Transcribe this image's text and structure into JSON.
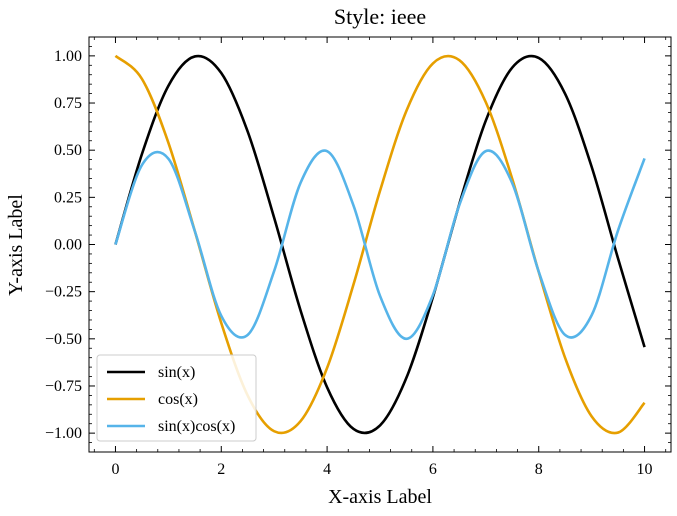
{
  "chart_data": {
    "type": "line",
    "title": "Style: ieee",
    "xlabel": "X-axis Label",
    "ylabel": "Y-axis Label",
    "xlim": [
      -0.5,
      10.5
    ],
    "ylim": [
      -1.1,
      1.1
    ],
    "x_ticks": [
      0,
      2,
      4,
      6,
      8,
      10
    ],
    "y_ticks": [
      1.0,
      0.75,
      0.5,
      0.25,
      0.0,
      -0.25,
      -0.5,
      -0.75,
      -1.0
    ],
    "x_tick_labels": [
      "0",
      "2",
      "4",
      "6",
      "8",
      "10"
    ],
    "y_tick_labels": [
      "1.00",
      "0.75",
      "0.50",
      "0.25",
      "0.00",
      "−0.25",
      "−0.50",
      "−0.75",
      "−1.00"
    ],
    "x": [
      0,
      0.5,
      1,
      1.5,
      2,
      2.5,
      3,
      3.5,
      4,
      4.5,
      5,
      5.5,
      6,
      6.5,
      7,
      7.5,
      8,
      8.5,
      9,
      9.5,
      10
    ],
    "series": [
      {
        "name": "sin(x)",
        "color": "#000000",
        "values": [
          0,
          0.479,
          0.841,
          0.997,
          0.909,
          0.598,
          0.141,
          -0.351,
          -0.757,
          -0.978,
          -0.959,
          -0.706,
          -0.279,
          0.215,
          0.657,
          0.938,
          0.989,
          0.798,
          0.412,
          -0.075,
          -0.544
        ]
      },
      {
        "name": "cos(x)",
        "color": "#e69f00",
        "values": [
          1,
          0.878,
          0.54,
          0.071,
          -0.416,
          -0.801,
          -0.99,
          -0.936,
          -0.654,
          -0.211,
          0.284,
          0.709,
          0.96,
          0.977,
          0.754,
          0.347,
          -0.146,
          -0.602,
          -0.911,
          -0.997,
          -0.839
        ]
      },
      {
        "name": "sin(x)cos(x)",
        "color": "#56b4e9",
        "values": [
          0,
          0.421,
          0.455,
          0.071,
          -0.378,
          -0.479,
          -0.14,
          0.328,
          0.495,
          0.206,
          -0.272,
          -0.5,
          -0.268,
          0.21,
          0.495,
          0.325,
          -0.144,
          -0.48,
          -0.375,
          0.075,
          0.456
        ]
      }
    ],
    "legend_position": "lower-left",
    "grid": false
  }
}
